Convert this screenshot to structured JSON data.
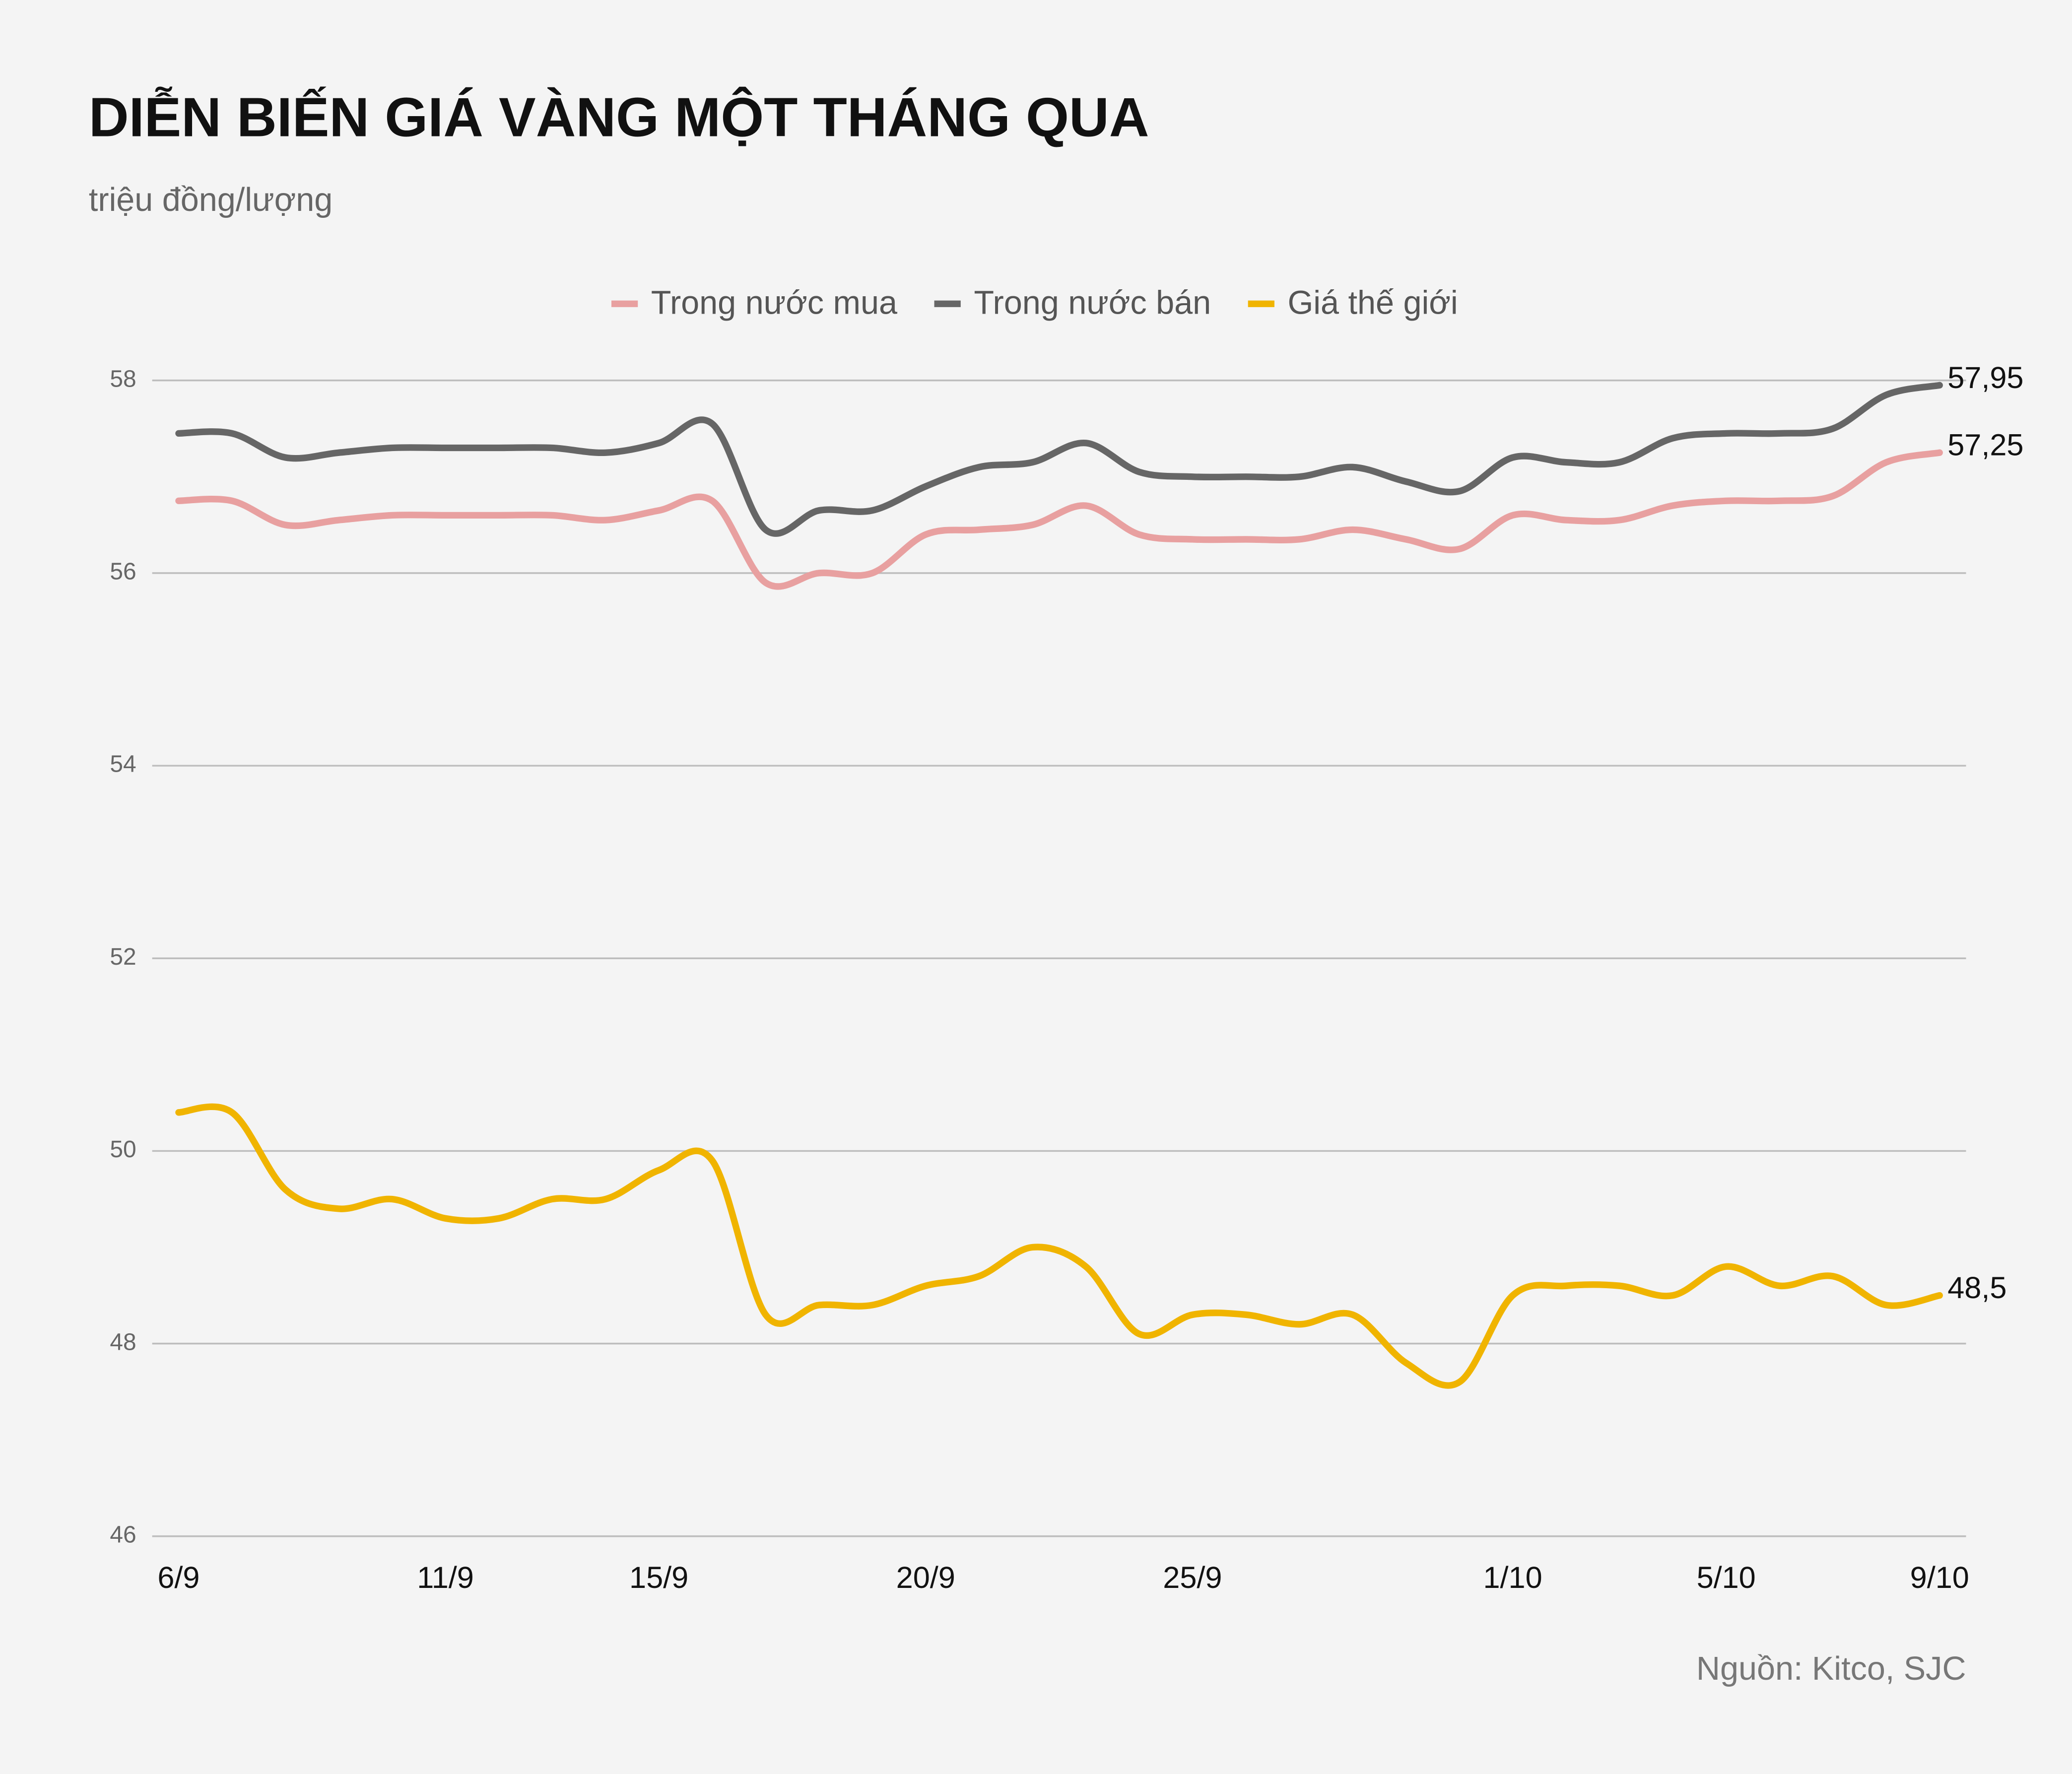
{
  "chart_data": {
    "type": "line",
    "title": "DIỄN BIẾN GIÁ VÀNG MỘT THÁNG QUA",
    "subtitle": "triệu đồng/lượng",
    "source": "Nguồn: Kitco, SJC",
    "categories": [
      "6/9",
      null,
      null,
      null,
      null,
      "11/9",
      null,
      null,
      null,
      "15/9",
      null,
      null,
      null,
      null,
      "20/9",
      null,
      null,
      null,
      null,
      "25/9",
      null,
      null,
      null,
      null,
      null,
      "1/10",
      null,
      null,
      null,
      "5/10",
      null,
      null,
      null,
      "9/10"
    ],
    "ylim": [
      46,
      58
    ],
    "yticks": [
      46,
      48,
      50,
      52,
      54,
      56,
      58
    ],
    "grid": true,
    "legend": "top",
    "series": [
      {
        "name": "Trong nước mua",
        "color": "#e8a0a0",
        "values": [
          56.75,
          56.75,
          56.5,
          56.55,
          56.6,
          56.6,
          56.6,
          56.6,
          56.55,
          56.65,
          56.75,
          55.9,
          56.0,
          56.0,
          56.4,
          56.45,
          56.5,
          56.7,
          56.4,
          56.35,
          56.35,
          56.35,
          56.45,
          56.35,
          56.25,
          56.6,
          56.55,
          56.55,
          56.7,
          56.75,
          56.75,
          56.8,
          57.15,
          57.25
        ],
        "value_labels": [
          null,
          null,
          null,
          null,
          null,
          null,
          null,
          null,
          null,
          null,
          null,
          null,
          null,
          null,
          null,
          null,
          null,
          null,
          null,
          null,
          null,
          null,
          null,
          null,
          null,
          null,
          null,
          null,
          null,
          null,
          null,
          null,
          null,
          "57,25"
        ]
      },
      {
        "name": "Trong nước bán",
        "color": "#666666",
        "values": [
          57.45,
          57.45,
          57.2,
          57.25,
          57.3,
          57.3,
          57.3,
          57.3,
          57.25,
          57.35,
          57.55,
          56.45,
          56.65,
          56.65,
          56.9,
          57.1,
          57.15,
          57.35,
          57.05,
          57.0,
          57.0,
          57.0,
          57.1,
          56.95,
          56.85,
          57.2,
          57.15,
          57.15,
          57.4,
          57.45,
          57.45,
          57.5,
          57.85,
          57.95
        ],
        "value_labels": [
          null,
          null,
          null,
          null,
          null,
          null,
          null,
          null,
          null,
          null,
          null,
          null,
          null,
          null,
          null,
          null,
          null,
          null,
          null,
          null,
          null,
          null,
          null,
          null,
          null,
          null,
          null,
          null,
          null,
          null,
          null,
          null,
          null,
          "57,95"
        ]
      },
      {
        "name": "Giá thế giới",
        "color": "#f0b400",
        "values": [
          50.4,
          50.4,
          49.6,
          49.4,
          49.5,
          49.3,
          49.3,
          49.5,
          49.5,
          49.8,
          49.9,
          48.3,
          48.4,
          48.4,
          48.6,
          48.7,
          49.0,
          48.8,
          48.1,
          48.3,
          48.3,
          48.2,
          48.3,
          47.8,
          47.6,
          48.5,
          48.6,
          48.6,
          48.5,
          48.8,
          48.6,
          48.7,
          48.4,
          48.5
        ],
        "value_labels": [
          null,
          null,
          null,
          null,
          null,
          null,
          null,
          null,
          null,
          null,
          null,
          null,
          null,
          null,
          null,
          null,
          null,
          null,
          null,
          null,
          null,
          null,
          null,
          null,
          null,
          null,
          null,
          null,
          null,
          null,
          null,
          null,
          null,
          "48,5"
        ]
      }
    ]
  }
}
